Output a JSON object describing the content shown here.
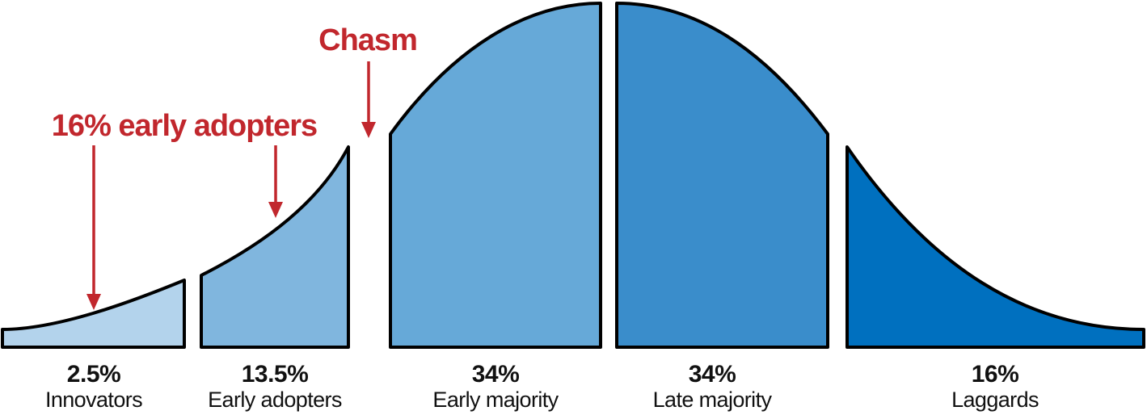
{
  "segments": [
    {
      "percent": "2.5%",
      "label": "Innovators",
      "color": "#b3d3ec"
    },
    {
      "percent": "13.5%",
      "label": "Early adopters",
      "color": "#80b6de"
    },
    {
      "percent": "34%",
      "label": "Early majority",
      "color": "#66a9d8"
    },
    {
      "percent": "34%",
      "label": "Late majority",
      "color": "#3a8dcb"
    },
    {
      "percent": "16%",
      "label": "Laggards",
      "color": "#0070bf"
    }
  ],
  "callouts": {
    "chasm": "Chasm",
    "early_adopters": "16% early adopters"
  },
  "colors": {
    "callout": "#c1272d",
    "outline": "#000000"
  }
}
